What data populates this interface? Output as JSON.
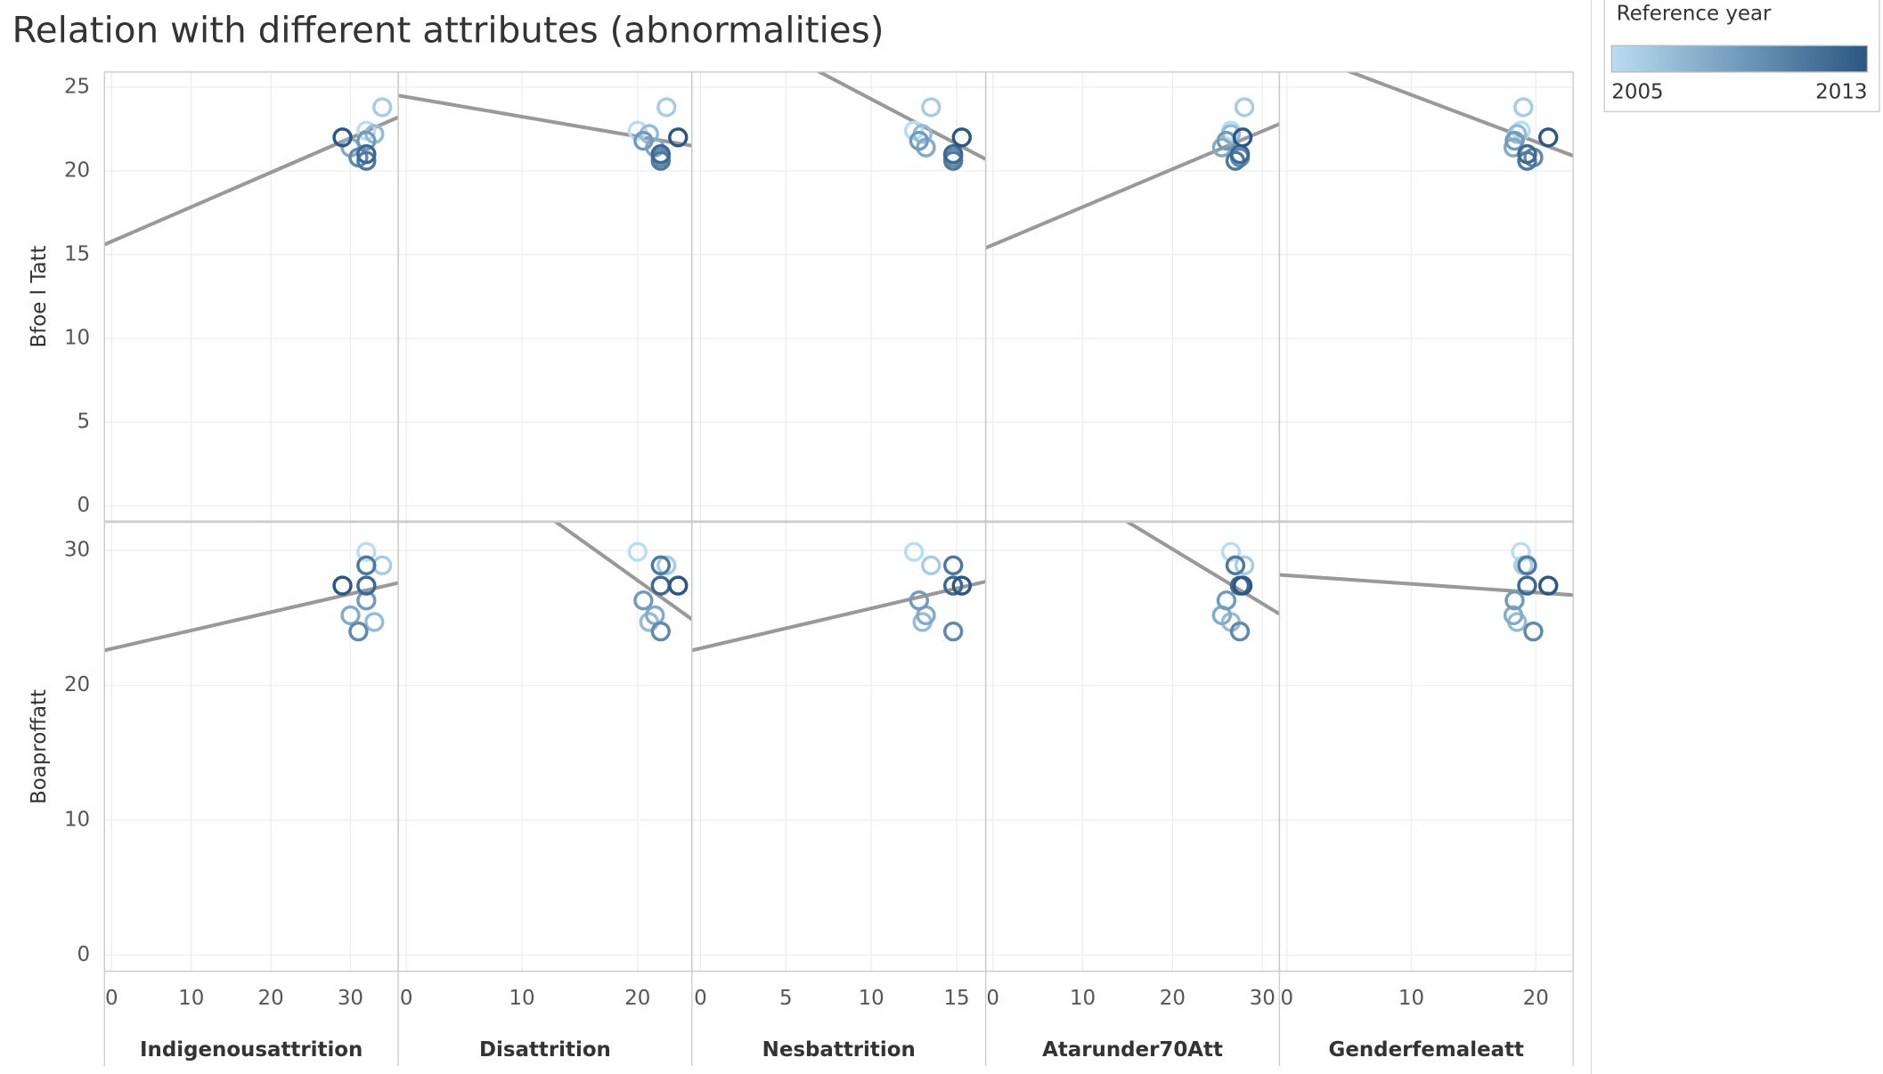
{
  "chart_data": {
    "type": "scatter-matrix",
    "title": "Relation with different attributes (abnormalities)",
    "color_scale": {
      "title": "Reference year",
      "min": 2005,
      "max": 2013,
      "colors": [
        "#b9ddf1",
        "#2a5783"
      ]
    },
    "years": [
      2005,
      2006,
      2007,
      2008,
      2009,
      2010,
      2011,
      2012,
      2013
    ],
    "rows": [
      {
        "label": "Bfoe l Tatt",
        "ylim": [
          -0.9,
          25.9
        ],
        "yticks": [
          0,
          5,
          10,
          15,
          20,
          25
        ],
        "values": [
          22.4,
          23.8,
          22.2,
          21.4,
          21.8,
          20.8,
          20.6,
          21.0,
          22.0
        ]
      },
      {
        "label": "Boaproffatt",
        "ylim": [
          -1.2,
          32.1
        ],
        "yticks": [
          0,
          10,
          20,
          30
        ],
        "values": [
          29.9,
          28.9,
          24.7,
          25.2,
          26.3,
          24.0,
          28.9,
          27.4,
          27.4
        ]
      }
    ],
    "columns": [
      {
        "label": "Indigenousattrition",
        "xlim": [
          -0.9,
          36
        ],
        "xticks": [
          0,
          10,
          20,
          30
        ],
        "values": [
          32,
          34,
          33,
          30,
          32,
          31,
          32,
          32,
          29
        ]
      },
      {
        "label": "Disattrition",
        "xlim": [
          -0.7,
          24.7
        ],
        "xticks": [
          0,
          10,
          20
        ],
        "values": [
          20,
          22.5,
          21,
          21.5,
          20.5,
          22,
          22,
          22,
          23.5
        ]
      },
      {
        "label": "Nesbattrition",
        "xlim": [
          -0.5,
          16.7
        ],
        "xticks": [
          0,
          5,
          10,
          15
        ],
        "values": [
          12.5,
          13.5,
          13,
          13.2,
          12.8,
          14.8,
          14.8,
          14.8,
          15.3
        ]
      },
      {
        "label": "Atarunder70Att",
        "xlim": [
          -0.8,
          31.9
        ],
        "xticks": [
          0,
          10,
          20,
          30
        ],
        "values": [
          26.5,
          28,
          26.5,
          25.5,
          26,
          27.5,
          27,
          27.5,
          27.8
        ]
      },
      {
        "label": "Genderfemaleatt",
        "xlim": [
          -0.6,
          23
        ],
        "xticks": [
          0,
          10,
          20
        ],
        "values": [
          18.8,
          19,
          18.5,
          18.2,
          18.3,
          19.8,
          19.3,
          19.3,
          21
        ]
      }
    ],
    "trends": [
      [
        [
          15.6,
          23.2
        ],
        [
          24.5,
          21.5
        ],
        [
          29.9,
          20.7
        ],
        [
          15.4,
          22.8
        ],
        [
          27.5,
          20.9
        ]
      ],
      [
        [
          22.6,
          27.6
        ],
        [
          40.5,
          24.9
        ],
        [
          22.6,
          27.7
        ],
        [
          38.5,
          25.3
        ],
        [
          28.2,
          26.7
        ]
      ]
    ],
    "trend_color": "#999999",
    "grid": true
  }
}
